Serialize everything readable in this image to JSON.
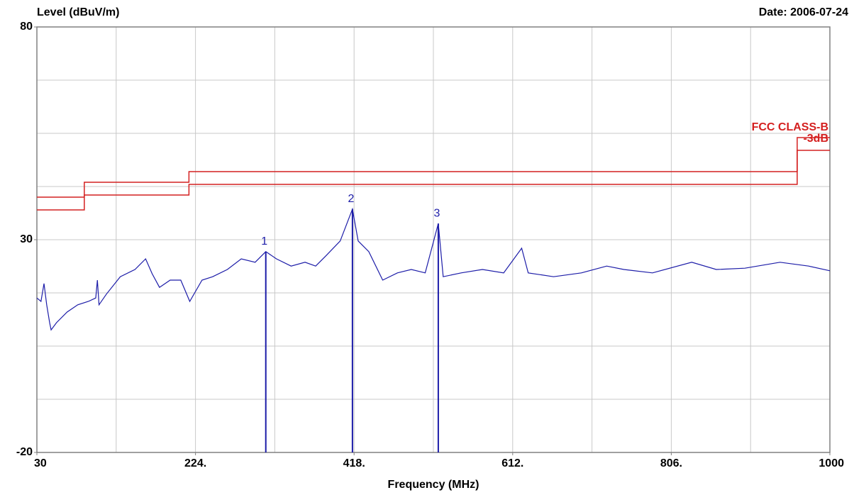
{
  "chart_data": {
    "type": "line",
    "title": "Level (dBuV/m)",
    "date": "Date: 2006-07-24",
    "xlabel": "Frequency (MHz)",
    "xlim": [
      30,
      1000
    ],
    "ylim": [
      -20,
      80
    ],
    "xticks": [
      30,
      {
        "value": 224,
        "label": "224."
      },
      {
        "value": 418,
        "label": "418."
      },
      {
        "value": 612,
        "label": "612."
      },
      {
        "value": 806,
        "label": "806."
      },
      1000
    ],
    "yticks": [
      -20,
      30,
      80
    ],
    "xgrid": [
      30,
      127,
      224,
      321,
      418,
      515,
      612,
      709,
      806,
      903,
      1000
    ],
    "ygrid": [
      -20,
      -7.5,
      5,
      17.5,
      30,
      42.5,
      55,
      67.5,
      80
    ],
    "grid": true,
    "series": [
      {
        "name": "FCC CLASS-B",
        "color": "#d42020",
        "x": [
          30,
          88,
          88,
          216,
          216,
          960,
          960,
          1000
        ],
        "values": [
          40,
          40,
          43.5,
          43.5,
          46,
          46,
          54,
          54
        ]
      },
      {
        "name": "-3dB",
        "color": "#d42020",
        "x": [
          30,
          88,
          88,
          216,
          216,
          960,
          960,
          1000
        ],
        "values": [
          37,
          37,
          40.5,
          40.5,
          43,
          43,
          51,
          51
        ]
      },
      {
        "color": "#1c1ca8",
        "x": [
          30,
          35,
          38.7,
          42,
          45.6,
          47.4,
          54,
          67,
          80,
          93,
          102,
          104,
          106,
          115,
          132,
          150,
          163,
          171,
          180,
          193,
          206,
          217,
          232,
          245,
          263,
          280,
          297,
          310,
          323,
          341,
          358,
          371,
          384,
          401,
          416,
          423,
          436,
          453,
          471,
          488,
          505,
          521,
          527,
          549,
          575,
          601,
          623,
          631,
          662,
          696,
          727,
          748,
          783,
          831,
          861,
          896,
          939,
          974,
          1000
        ],
        "values": [
          16.3,
          15.5,
          19.7,
          14.7,
          10.5,
          8.8,
          10.5,
          13,
          14.7,
          15.5,
          16.3,
          20.5,
          14.7,
          17.2,
          21.3,
          23,
          25.5,
          22,
          18.8,
          20.5,
          20.5,
          15.5,
          20.5,
          21.3,
          23,
          25.5,
          24.7,
          27.2,
          25.5,
          23.8,
          24.7,
          23.8,
          26.3,
          29.7,
          37.2,
          29.7,
          27.2,
          20.5,
          22.2,
          23,
          22.2,
          33.8,
          21.3,
          22.2,
          23,
          22.2,
          28,
          22.2,
          21.3,
          22.2,
          23.8,
          23,
          22.2,
          24.7,
          23,
          23.3,
          24.7,
          23.8,
          22.7
        ]
      }
    ],
    "markers": [
      {
        "label": "1",
        "x": 310,
        "value": 27.2
      },
      {
        "label": "2",
        "x": 416,
        "value": 37.2
      },
      {
        "label": "3",
        "x": 521,
        "value": 33.8
      }
    ]
  }
}
